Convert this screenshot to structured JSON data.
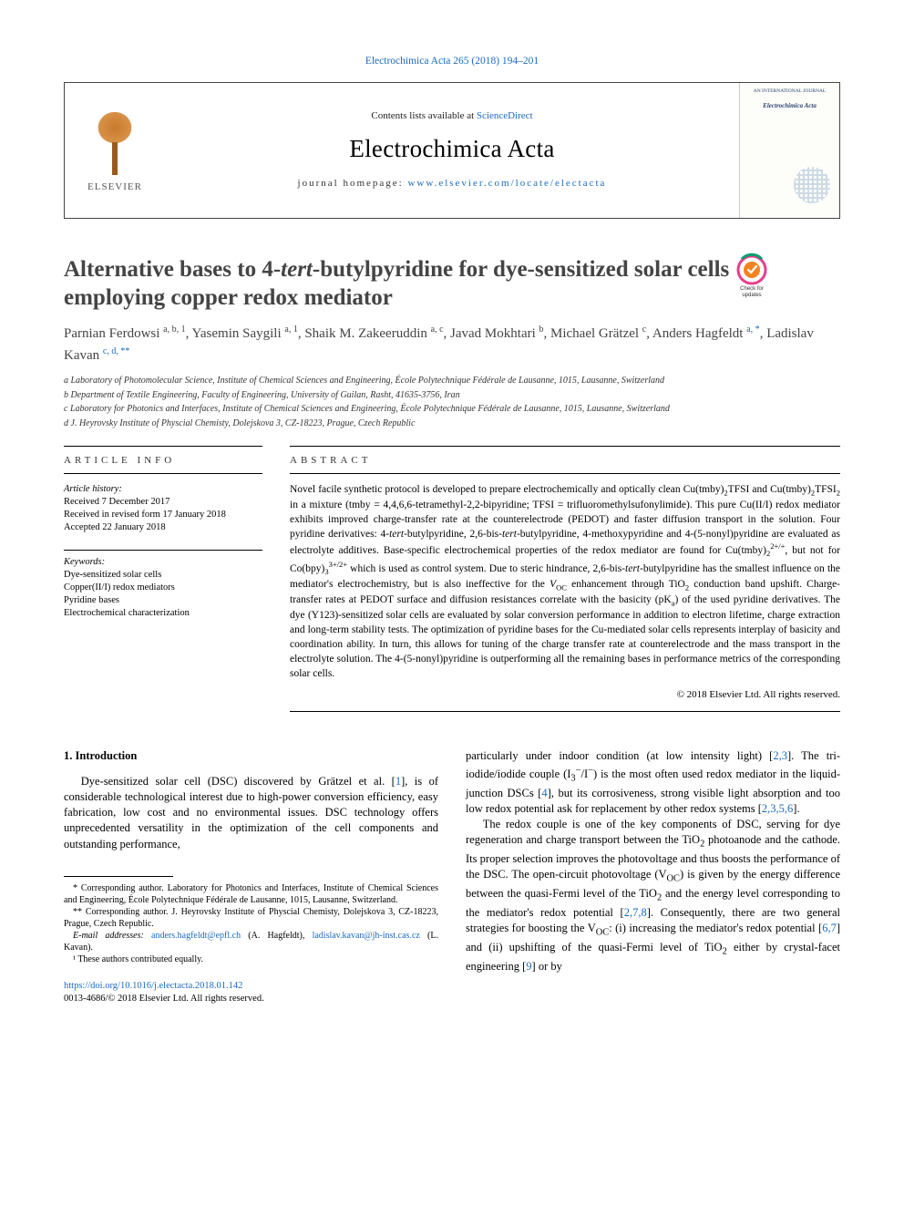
{
  "top_citation": "Electrochimica Acta 265 (2018) 194–201",
  "header": {
    "contents_prefix": "Contents lists available at ",
    "contents_link": "ScienceDirect",
    "journal": "Electrochimica Acta",
    "homepage_prefix": "journal homepage: ",
    "homepage_url": "www.elsevier.com/locate/electacta",
    "publisher_label": "ELSEVIER",
    "cover_small_1": "AN INTERNATIONAL JOURNAL",
    "cover_small_2": "Electrochimica Acta"
  },
  "check_updates": "Check for updates",
  "title": {
    "pre": "Alternative bases to 4-",
    "ital": "tert",
    "post": "-butylpyridine for dye-sensitized solar cells employing copper redox mediator"
  },
  "authors_html": "Parnian Ferdowsi <sup>a, b, 1</sup>, Yasemin Saygili <sup>a, 1</sup>, Shaik M. Zakeeruddin <sup>a, c</sup>, Javad Mokhtari <sup>b</sup>, Michael Grätzel <sup>c</sup>, Anders Hagfeldt <sup>a, *</sup>, Ladislav Kavan <sup>c, d, **</sup>",
  "affiliations": [
    "a Laboratory of Photomolecular Science, Institute of Chemical Sciences and Engineering, École Polytechnique Fédérale de Lausanne, 1015, Lausanne, Switzerland",
    "b Department of Textile Engineering, Faculty of Engineering, University of Guilan, Rasht, 41635-3756, Iran",
    "c Laboratory for Photonics and Interfaces, Institute of Chemical Sciences and Engineering, École Polytechnique Fédérale de Lausanne, 1015, Lausanne, Switzerland",
    "d J. Heyrovsky Institute of Physcial Chemisty, Dolejskova 3, CZ-18223, Prague, Czech Republic"
  ],
  "info_head": "ARTICLE INFO",
  "abs_head": "ABSTRACT",
  "history": {
    "label": "Article history:",
    "received": "Received 7 December 2017",
    "revised": "Received in revised form 17 January 2018",
    "accepted": "Accepted 22 January 2018"
  },
  "keywords_label": "Keywords:",
  "keywords": [
    "Dye-sensitized solar cells",
    "Copper(II/I) redox mediators",
    "Pyridine bases",
    "Electrochemical characterization"
  ],
  "abstract": "Novel facile synthetic protocol is developed to prepare electrochemically and optically clean Cu(tmby)₂TFSI and Cu(tmby)₂TFSI₂ in a mixture (tmby = 4,4,6,6-tetramethyl-2,2-bipyridine; TFSI = trifluoromethylsufonylimide). This pure Cu(II/I) redox mediator exhibits improved charge-transfer rate at the counterelectrode (PEDOT) and faster diffusion transport in the solution. Four pyridine derivatives: 4-tert-butylpyridine, 2,6-bis-tert-butylpyridine, 4-methoxypyridine and 4-(5-nonyl)pyridine are evaluated as electrolyte additives. Base-specific electrochemical properties of the redox mediator are found for Cu(tmby)₂²⁺/⁺, but not for Co(bpy)₃³⁺/²⁺ which is used as control system. Due to steric hindrance, 2,6-bis-tert-butylpyridine has the smallest influence on the mediator's electrochemistry, but is also ineffective for the V_OC enhancement through TiO₂ conduction band upshift. Charge-transfer rates at PEDOT surface and diffusion resistances correlate with the basicity (pKₐ) of the used pyridine derivatives. The dye (Y123)-sensitized solar cells are evaluated by solar conversion performance in addition to electron lifetime, charge extraction and long-term stability tests. The optimization of pyridine bases for the Cu-mediated solar cells represents interplay of basicity and coordination ability. In turn, this allows for tuning of the charge transfer rate at counterelectrode and the mass transport in the electrolyte solution. The 4-(5-nonyl)pyridine is outperforming all the remaining bases in performance metrics of the corresponding solar cells.",
  "copyright": "© 2018 Elsevier Ltd. All rights reserved.",
  "section1_heading": "1. Introduction",
  "body_left": "Dye-sensitized solar cell (DSC) discovered by Grätzel et al. [1], is of considerable technological interest due to high-power conversion efficiency, easy fabrication, low cost and no environmental issues. DSC technology offers unprecedented versatility in the optimization of the cell components and outstanding performance,",
  "body_right_p1": "particularly under indoor condition (at low intensity light) [2,3]. The tri-iodide/iodide couple (I₃⁻/I⁻) is the most often used redox mediator in the liquid-junction DSCs [4], but its corrosiveness, strong visible light absorption and too low redox potential ask for replacement by other redox systems [2,3,5,6].",
  "body_right_p2": "The redox couple is one of the key components of DSC, serving for dye regeneration and charge transport between the TiO₂ photoanode and the cathode. Its proper selection improves the photovoltage and thus boosts the performance of the DSC. The open-circuit photovoltage (V_OC) is given by the energy difference between the quasi-Fermi level of the TiO₂ and the energy level corresponding to the mediator's redox potential [2,7,8]. Consequently, there are two general strategies for boosting the V_OC: (i) increasing the mediator's redox potential [6,7] and (ii) upshifting of the quasi-Fermi level of TiO₂ either by crystal-facet engineering [9] or by",
  "footnotes": {
    "star1": "* Corresponding author. Laboratory for Photonics and Interfaces, Institute of Chemical Sciences and Engineering, École Polytechnique Fédérale de Lausanne, 1015, Lausanne, Switzerland.",
    "star2": "** Corresponding author. J. Heyrovsky Institute of Physcial Chemisty, Dolejskova 3, CZ-18223, Prague, Czech Republic.",
    "email_label": "E-mail addresses: ",
    "email1": "anders.hagfeldt@epfl.ch",
    "email1_who": " (A. Hagfeldt), ",
    "email2": "ladislav.kavan@jh-inst.cas.cz",
    "email2_who": " (L. Kavan).",
    "note1": "¹ These authors contributed equally."
  },
  "doi": "https://doi.org/10.1016/j.electacta.2018.01.142",
  "issn_line": "0013-4686/© 2018 Elsevier Ltd. All rights reserved.",
  "colors": {
    "link": "#1a6bbf",
    "text": "#000000",
    "title_gray": "#444444",
    "orange": "#f58220",
    "green": "#009e73",
    "pink": "#e83e8c"
  }
}
